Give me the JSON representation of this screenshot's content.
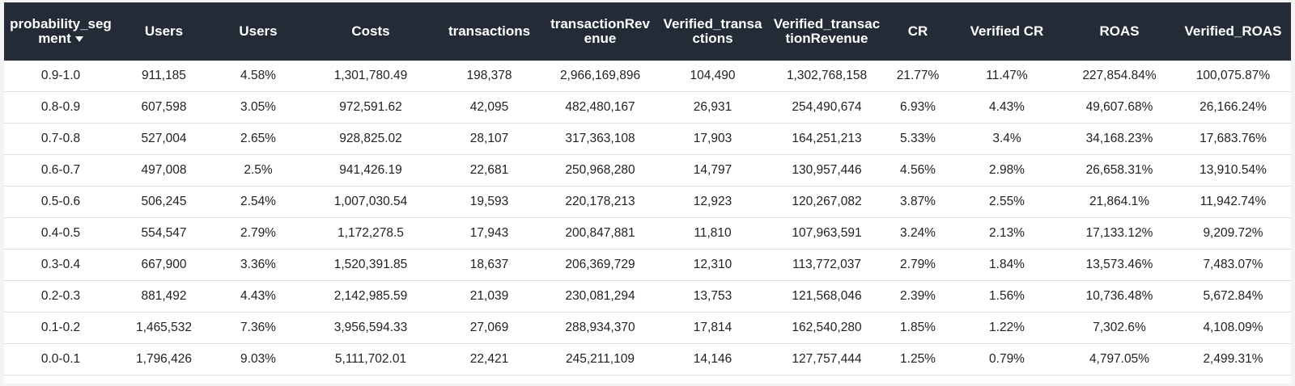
{
  "table": {
    "columns": [
      {
        "key": "probability_segment",
        "label": "probability_segment",
        "sorted": true
      },
      {
        "key": "users",
        "label": "Users"
      },
      {
        "key": "users_pct",
        "label": "Users"
      },
      {
        "key": "costs",
        "label": "Costs"
      },
      {
        "key": "transactions",
        "label": "transactions"
      },
      {
        "key": "transaction_revenue",
        "label": "transactionRevenue"
      },
      {
        "key": "verified_transactions",
        "label": "Verified_transactions"
      },
      {
        "key": "verified_transaction_revenue",
        "label": "Verified_transactionRevenue"
      },
      {
        "key": "cr",
        "label": "CR"
      },
      {
        "key": "verified_cr",
        "label": "Verified CR"
      },
      {
        "key": "roas",
        "label": "ROAS"
      },
      {
        "key": "verified_roas",
        "label": "Verified_ROAS"
      }
    ],
    "rows": [
      [
        "0.9-1.0",
        "911,185",
        "4.58%",
        "1,301,780.49",
        "198,378",
        "2,966,169,896",
        "104,490",
        "1,302,768,158",
        "21.77%",
        "11.47%",
        "227,854.84%",
        "100,075.87%"
      ],
      [
        "0.8-0.9",
        "607,598",
        "3.05%",
        "972,591.62",
        "42,095",
        "482,480,167",
        "26,931",
        "254,490,674",
        "6.93%",
        "4.43%",
        "49,607.68%",
        "26,166.24%"
      ],
      [
        "0.7-0.8",
        "527,004",
        "2.65%",
        "928,825.02",
        "28,107",
        "317,363,108",
        "17,903",
        "164,251,213",
        "5.33%",
        "3.4%",
        "34,168.23%",
        "17,683.76%"
      ],
      [
        "0.6-0.7",
        "497,008",
        "2.5%",
        "941,426.19",
        "22,681",
        "250,968,280",
        "14,797",
        "130,957,446",
        "4.56%",
        "2.98%",
        "26,658.31%",
        "13,910.54%"
      ],
      [
        "0.5-0.6",
        "506,245",
        "2.54%",
        "1,007,030.54",
        "19,593",
        "220,178,213",
        "12,923",
        "120,267,082",
        "3.87%",
        "2.55%",
        "21,864.1%",
        "11,942.74%"
      ],
      [
        "0.4-0.5",
        "554,547",
        "2.79%",
        "1,172,278.5",
        "17,943",
        "200,847,881",
        "11,810",
        "107,963,591",
        "3.24%",
        "2.13%",
        "17,133.12%",
        "9,209.72%"
      ],
      [
        "0.3-0.4",
        "667,900",
        "3.36%",
        "1,520,391.85",
        "18,637",
        "206,369,729",
        "12,310",
        "113,772,037",
        "2.79%",
        "1.84%",
        "13,573.46%",
        "7,483.07%"
      ],
      [
        "0.2-0.3",
        "881,492",
        "4.43%",
        "2,142,985.59",
        "21,039",
        "230,081,294",
        "13,753",
        "121,568,046",
        "2.39%",
        "1.56%",
        "10,736.48%",
        "5,672.84%"
      ],
      [
        "0.1-0.2",
        "1,465,532",
        "7.36%",
        "3,956,594.33",
        "27,069",
        "288,934,370",
        "17,814",
        "162,540,280",
        "1.85%",
        "1.22%",
        "7,302.6%",
        "4,108.09%"
      ],
      [
        "0.0-0.1",
        "1,796,426",
        "9.03%",
        "5,111,702.01",
        "22,421",
        "245,211,109",
        "14,146",
        "127,757,444",
        "1.25%",
        "0.79%",
        "4,797.05%",
        "2,499.31%"
      ]
    ]
  },
  "icons": {
    "sort": "caret-down-icon"
  },
  "colors": {
    "header_bg": "#232b36",
    "header_text": "#ffffff",
    "row_border": "#e0e0e0",
    "cell_text": "#222222"
  }
}
